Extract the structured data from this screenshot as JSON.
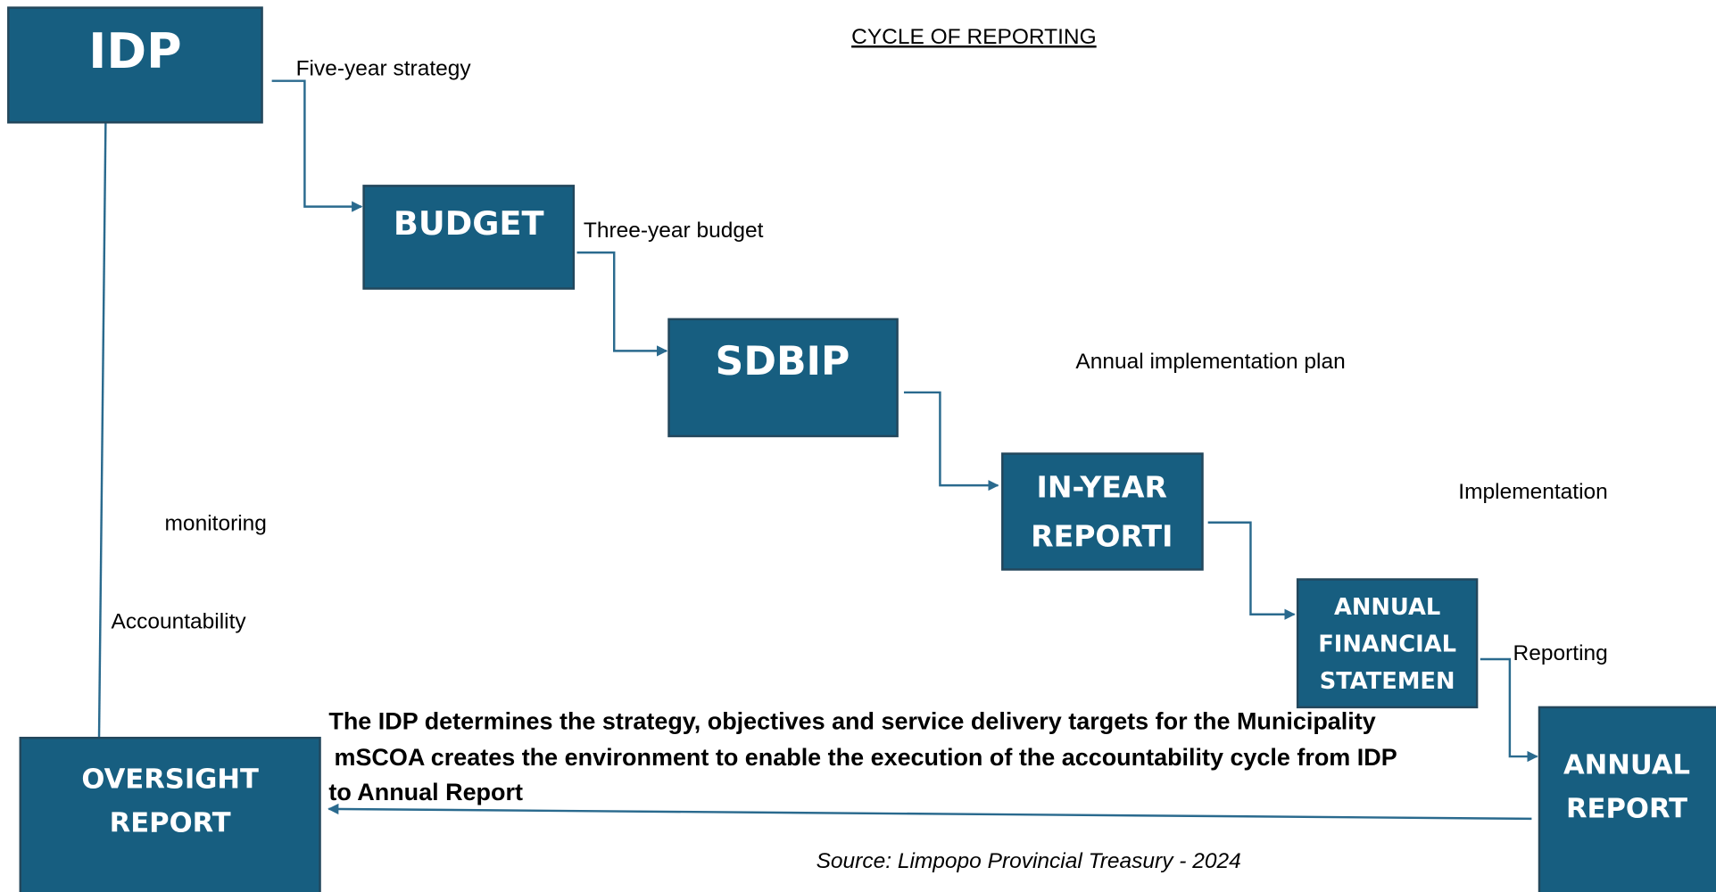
{
  "title": "CYCLE OF REPORTING",
  "nodes": [
    {
      "lines": [
        "IDP"
      ]
    },
    {
      "lines": [
        "BUDGET"
      ]
    },
    {
      "lines": [
        "SDBIP"
      ]
    },
    {
      "lines": [
        "IN-YEAR",
        "REPORTI"
      ]
    },
    {
      "lines": [
        "ANNUAL",
        "FINANCIAL",
        "STATEMEN"
      ]
    },
    {
      "lines": [
        "ANNUAL",
        "REPORT"
      ]
    },
    {
      "lines": [
        "OVERSIGHT",
        "REPORT"
      ]
    }
  ],
  "edge_labels": [
    "Five-year strategy",
    "Three-year budget",
    "Annual implementation plan",
    "Implementation",
    "Reporting",
    "monitoring",
    "Accountability"
  ],
  "notes": [
    "The IDP determines the strategy, objectives and service delivery targets for the Municipality",
    "mSCOA creates the environment to enable the execution of the accountability cycle from IDP",
    "to Annual Report"
  ],
  "source": "Source: Limpopo Provincial Treasury - 2024"
}
